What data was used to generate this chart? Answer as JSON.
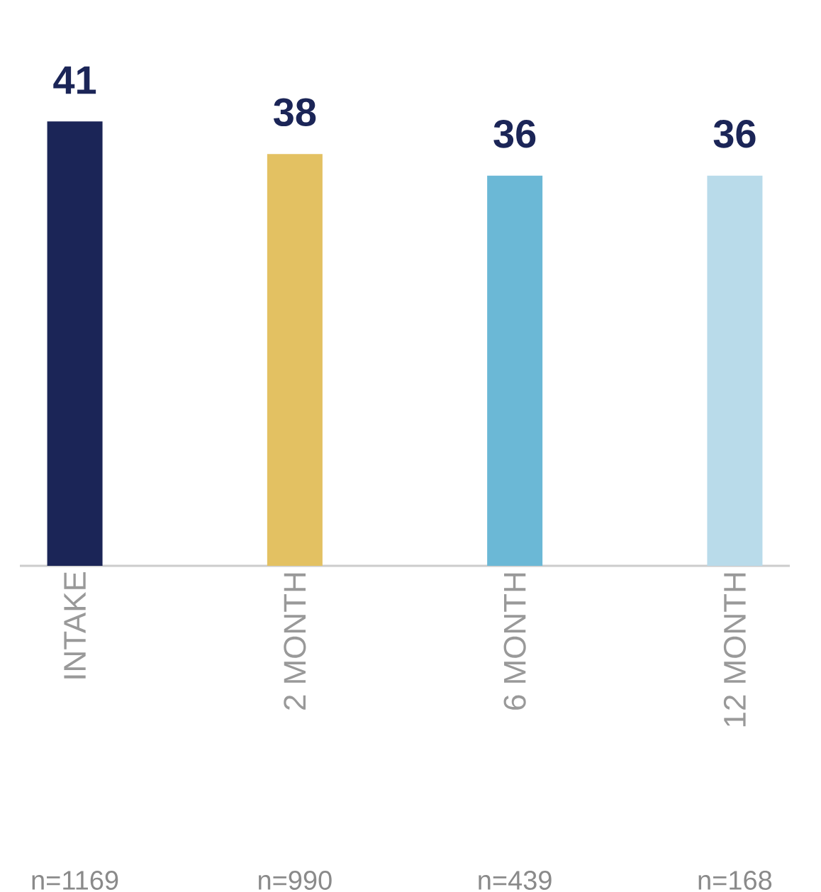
{
  "chart_data": {
    "type": "bar",
    "categories": [
      "INTAKE",
      "2 MONTH",
      "6 MONTH",
      "12 MONTH"
    ],
    "values": [
      41,
      38,
      36,
      36
    ],
    "colors": [
      "#1b2557",
      "#e3c162",
      "#6bb8d6",
      "#b9dbea"
    ],
    "data_labels": true,
    "annotations": [
      "n=1169",
      "n=990",
      "n=439",
      "n=168"
    ]
  }
}
